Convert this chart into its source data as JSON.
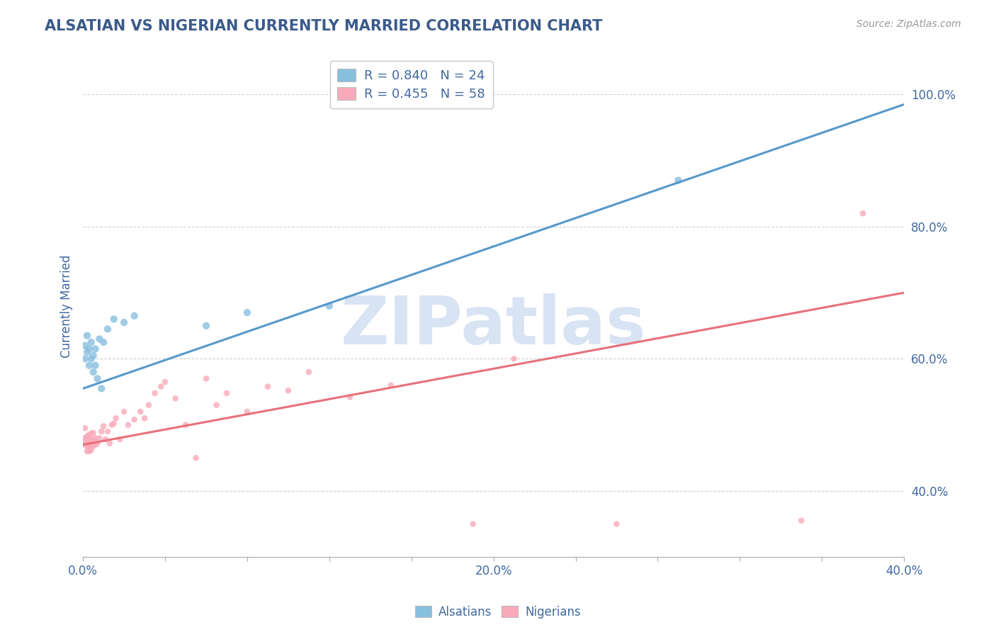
{
  "title": "ALSATIAN VS NIGERIAN CURRENTLY MARRIED CORRELATION CHART",
  "source": "Source: ZipAtlas.com",
  "ylabel": "Currently Married",
  "xlim": [
    0.0,
    0.4
  ],
  "ylim": [
    0.3,
    1.06
  ],
  "x_ticks": [
    0.0,
    0.04,
    0.08,
    0.12,
    0.16,
    0.2,
    0.24,
    0.28,
    0.32,
    0.36,
    0.4
  ],
  "x_tick_labels": [
    "0.0%",
    "",
    "",
    "",
    "",
    "20.0%",
    "",
    "",
    "",
    "",
    "40.0%"
  ],
  "y_ticks_right": [
    0.4,
    0.6,
    0.8,
    1.0
  ],
  "y_tick_labels_right": [
    "40.0%",
    "60.0%",
    "80.0%",
    "100.0%"
  ],
  "alsatian_color": "#87BFDF",
  "nigerian_color": "#F9AABA",
  "alsatian_line_color": "#5599CC",
  "nigerian_line_color": "#E8707A",
  "alsatian_R": 0.84,
  "alsatian_N": 24,
  "nigerian_R": 0.455,
  "nigerian_N": 58,
  "alsatian_x": [
    0.001,
    0.001,
    0.002,
    0.002,
    0.003,
    0.003,
    0.004,
    0.004,
    0.005,
    0.005,
    0.006,
    0.006,
    0.007,
    0.008,
    0.009,
    0.01,
    0.012,
    0.015,
    0.02,
    0.025,
    0.06,
    0.08,
    0.12,
    0.29
  ],
  "alsatian_y": [
    0.6,
    0.62,
    0.61,
    0.635,
    0.59,
    0.615,
    0.6,
    0.625,
    0.58,
    0.605,
    0.59,
    0.615,
    0.57,
    0.63,
    0.555,
    0.625,
    0.645,
    0.66,
    0.655,
    0.665,
    0.65,
    0.67,
    0.68,
    0.87
  ],
  "nigerian_x": [
    0.001,
    0.001,
    0.001,
    0.001,
    0.002,
    0.002,
    0.002,
    0.002,
    0.003,
    0.003,
    0.003,
    0.003,
    0.004,
    0.004,
    0.004,
    0.004,
    0.005,
    0.005,
    0.005,
    0.006,
    0.006,
    0.007,
    0.008,
    0.009,
    0.01,
    0.011,
    0.012,
    0.013,
    0.014,
    0.015,
    0.016,
    0.018,
    0.02,
    0.022,
    0.025,
    0.028,
    0.03,
    0.032,
    0.035,
    0.038,
    0.04,
    0.045,
    0.05,
    0.055,
    0.06,
    0.065,
    0.07,
    0.08,
    0.09,
    0.1,
    0.11,
    0.13,
    0.15,
    0.19,
    0.21,
    0.26,
    0.35,
    0.38
  ],
  "nigerian_y": [
    0.47,
    0.475,
    0.48,
    0.495,
    0.46,
    0.467,
    0.472,
    0.483,
    0.46,
    0.468,
    0.475,
    0.485,
    0.462,
    0.47,
    0.478,
    0.487,
    0.468,
    0.477,
    0.488,
    0.47,
    0.48,
    0.472,
    0.48,
    0.49,
    0.498,
    0.478,
    0.49,
    0.472,
    0.5,
    0.502,
    0.51,
    0.478,
    0.52,
    0.5,
    0.508,
    0.52,
    0.51,
    0.53,
    0.548,
    0.558,
    0.565,
    0.54,
    0.5,
    0.45,
    0.57,
    0.53,
    0.548,
    0.52,
    0.558,
    0.552,
    0.58,
    0.542,
    0.56,
    0.35,
    0.6,
    0.35,
    0.355,
    0.82
  ],
  "alsatian_line_x0": 0.0,
  "alsatian_line_y0": 0.555,
  "alsatian_line_x1": 0.4,
  "alsatian_line_y1": 0.985,
  "nigerian_line_x0": 0.0,
  "nigerian_line_y0": 0.47,
  "nigerian_line_x1": 0.4,
  "nigerian_line_y1": 0.7,
  "watermark_text": "ZIPatlas",
  "watermark_color": "#C8D8EE",
  "watermark_alpha": 0.7,
  "background_color": "#ffffff",
  "grid_color": "#cccccc",
  "title_color": "#3A5A8A",
  "axis_label_color": "#4169A0",
  "dot_size_alsatian": 55,
  "dot_size_nigerian": 38,
  "dot_alpha": 0.8
}
